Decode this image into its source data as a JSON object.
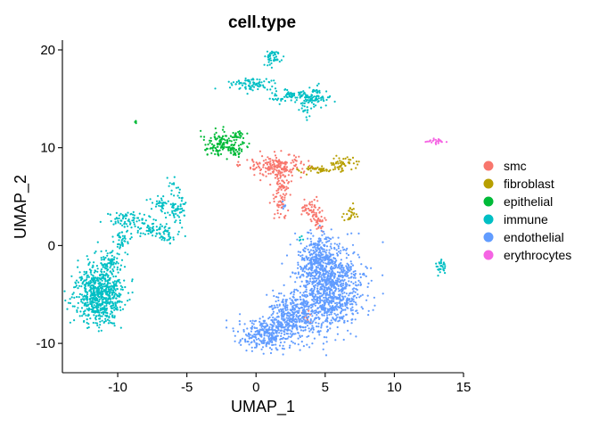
{
  "chart_data": {
    "type": "scatter",
    "title": "cell.type",
    "xlabel": "UMAP_1",
    "ylabel": "UMAP_2",
    "xlim": [
      -14,
      15
    ],
    "ylim": [
      -13,
      21
    ],
    "xticks": [
      -10,
      -5,
      0,
      5,
      10,
      15
    ],
    "yticks": [
      -10,
      0,
      10,
      20
    ],
    "grid": false,
    "legend_position": "right",
    "series": [
      {
        "name": "smc",
        "color": "#F8766D",
        "clusters": [
          {
            "cx": 1.5,
            "cy": 8.2,
            "sx": 1.0,
            "sy": 0.5,
            "n": 170
          },
          {
            "cx": 1.8,
            "cy": 5.6,
            "sx": 0.35,
            "sy": 1.4,
            "n": 110
          },
          {
            "cx": 4.0,
            "cy": 3.7,
            "sx": 0.4,
            "sy": 0.6,
            "n": 60
          },
          {
            "cx": 4.6,
            "cy": 2.3,
            "sx": 0.2,
            "sy": 0.5,
            "n": 25
          },
          {
            "cx": 3.6,
            "cy": -7.0,
            "sx": 0.3,
            "sy": 0.6,
            "n": 10
          }
        ]
      },
      {
        "name": "fibroblast",
        "color": "#B79F00",
        "clusters": [
          {
            "cx": 4.8,
            "cy": 7.8,
            "sx": 0.9,
            "sy": 0.2,
            "n": 55
          },
          {
            "cx": 6.4,
            "cy": 8.4,
            "sx": 0.5,
            "sy": 0.3,
            "n": 45
          },
          {
            "cx": 6.8,
            "cy": 3.2,
            "sx": 0.25,
            "sy": 0.5,
            "n": 25
          }
        ]
      },
      {
        "name": "epithelial",
        "color": "#00BA38",
        "clusters": [
          {
            "cx": -2.7,
            "cy": 10.3,
            "sx": 0.5,
            "sy": 0.6,
            "n": 110
          },
          {
            "cx": -1.5,
            "cy": 10.0,
            "sx": 0.4,
            "sy": 0.4,
            "n": 45
          },
          {
            "cx": -1.3,
            "cy": 11.2,
            "sx": 0.3,
            "sy": 0.3,
            "n": 25
          },
          {
            "cx": -8.7,
            "cy": 12.6,
            "sx": 0.05,
            "sy": 0.1,
            "n": 5
          }
        ]
      },
      {
        "name": "immune",
        "color": "#00BFC4",
        "clusters": [
          {
            "cx": -11.3,
            "cy": -5.0,
            "sx": 0.8,
            "sy": 1.6,
            "n": 700
          },
          {
            "cx": -10.5,
            "cy": -1.6,
            "sx": 0.4,
            "sy": 0.6,
            "n": 60
          },
          {
            "cx": -9.8,
            "cy": 0.5,
            "sx": 0.3,
            "sy": 0.5,
            "n": 35
          },
          {
            "cx": -9.3,
            "cy": 2.7,
            "sx": 0.9,
            "sy": 0.4,
            "n": 70
          },
          {
            "cx": -7.5,
            "cy": 1.5,
            "sx": 0.9,
            "sy": 0.45,
            "n": 70
          },
          {
            "cx": -6.3,
            "cy": 0.8,
            "sx": 0.35,
            "sy": 0.3,
            "n": 25
          },
          {
            "cx": -6.7,
            "cy": 4.0,
            "sx": 0.6,
            "sy": 0.6,
            "n": 50
          },
          {
            "cx": -5.6,
            "cy": 3.8,
            "sx": 0.25,
            "sy": 0.8,
            "n": 45
          },
          {
            "cx": -6.1,
            "cy": 6.5,
            "sx": 0.2,
            "sy": 0.5,
            "n": 10
          },
          {
            "cx": 1.2,
            "cy": 19.2,
            "sx": 0.3,
            "sy": 0.4,
            "n": 50
          },
          {
            "cx": -0.3,
            "cy": 16.5,
            "sx": 0.8,
            "sy": 0.3,
            "n": 80
          },
          {
            "cx": 2.2,
            "cy": 15.3,
            "sx": 0.7,
            "sy": 0.35,
            "n": 60
          },
          {
            "cx": 4.2,
            "cy": 15.2,
            "sx": 0.6,
            "sy": 0.5,
            "n": 100
          },
          {
            "cx": 3.6,
            "cy": 13.8,
            "sx": 0.2,
            "sy": 0.4,
            "n": 15
          },
          {
            "cx": 13.3,
            "cy": -2.2,
            "sx": 0.2,
            "sy": 0.35,
            "n": 30
          },
          {
            "cx": 3.2,
            "cy": 0.6,
            "sx": 0.1,
            "sy": 0.15,
            "n": 5
          }
        ]
      },
      {
        "name": "endothelial",
        "color": "#619CFF",
        "clusters": [
          {
            "cx": 5.3,
            "cy": -4.5,
            "sx": 1.2,
            "sy": 2.1,
            "n": 1000
          },
          {
            "cx": 4.4,
            "cy": -1.2,
            "sx": 0.7,
            "sy": 1.1,
            "n": 250
          },
          {
            "cx": 2.6,
            "cy": -7.2,
            "sx": 0.9,
            "sy": 1.1,
            "n": 350
          },
          {
            "cx": 0.8,
            "cy": -9.1,
            "sx": 1.0,
            "sy": 0.9,
            "n": 300
          },
          {
            "cx": 2.0,
            "cy": 4.0,
            "sx": 0.1,
            "sy": 0.3,
            "n": 6
          }
        ]
      },
      {
        "name": "erythrocytes",
        "color": "#F564E3",
        "clusters": [
          {
            "cx": 13.0,
            "cy": 10.7,
            "sx": 0.35,
            "sy": 0.12,
            "n": 25
          }
        ]
      }
    ]
  }
}
